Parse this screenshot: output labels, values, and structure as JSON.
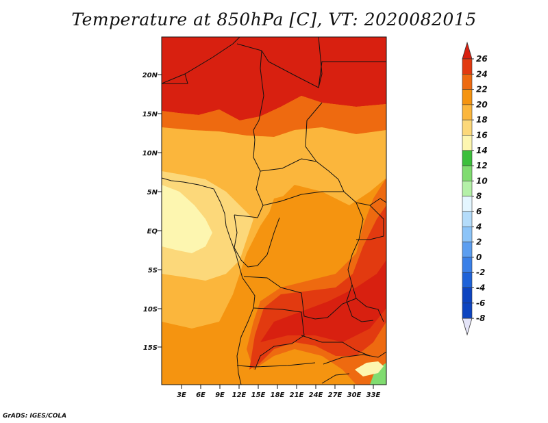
{
  "title": "Temperature at 850hPa [C], VT: 2020082015",
  "credit": "GrADS: IGES/COLA",
  "axes": {
    "lat_labels": [
      "20N",
      "15N",
      "10N",
      "5N",
      "EQ",
      "5S",
      "10S",
      "15S"
    ],
    "lon_labels": [
      "3E",
      "6E",
      "9E",
      "12E",
      "15E",
      "18E",
      "21E",
      "24E",
      "27E",
      "30E",
      "33E"
    ]
  },
  "colorbar": {
    "labels": [
      "26",
      "24",
      "22",
      "20",
      "18",
      "16",
      "14",
      "12",
      "10",
      "8",
      "6",
      "4",
      "2",
      "0",
      "-2",
      "-4",
      "-6",
      "-8"
    ],
    "colors": [
      "#d82010",
      "#e23a10",
      "#ee6a10",
      "#f59410",
      "#fbb63c",
      "#fcd87a",
      "#fdf6b0",
      "#3cbf3c",
      "#80dc70",
      "#b4f0a8",
      "#e4f6ff",
      "#b4dcfa",
      "#8cc4f8",
      "#5c9ef0",
      "#3a80e8",
      "#1e62d8",
      "#0d44c0",
      "#0a1f84"
    ]
  }
}
